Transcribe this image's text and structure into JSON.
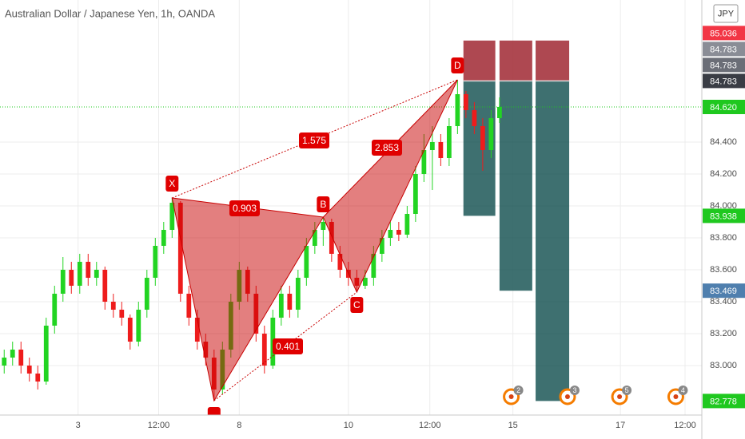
{
  "header": {
    "title": "Australian Dollar / Japanese Yen, 1h, OANDA",
    "currency_button": "JPY"
  },
  "chart_data": {
    "type": "candlestick",
    "candles": [
      [
        83.0,
        83.1,
        82.95,
        83.05
      ],
      [
        83.05,
        83.15,
        83.0,
        83.1
      ],
      [
        83.1,
        83.15,
        82.95,
        83.0
      ],
      [
        83.0,
        83.05,
        82.9,
        82.95
      ],
      [
        82.95,
        83.0,
        82.85,
        82.9
      ],
      [
        82.9,
        83.3,
        82.88,
        83.25
      ],
      [
        83.25,
        83.5,
        83.2,
        83.45
      ],
      [
        83.45,
        83.68,
        83.4,
        83.6
      ],
      [
        83.6,
        83.65,
        83.45,
        83.5
      ],
      [
        83.5,
        83.7,
        83.45,
        83.65
      ],
      [
        83.65,
        83.7,
        83.5,
        83.55
      ],
      [
        83.55,
        83.65,
        83.5,
        83.6
      ],
      [
        83.6,
        83.62,
        83.35,
        83.4
      ],
      [
        83.4,
        83.45,
        83.3,
        83.35
      ],
      [
        83.35,
        83.4,
        83.25,
        83.3
      ],
      [
        83.3,
        83.32,
        83.1,
        83.15
      ],
      [
        83.15,
        83.4,
        83.12,
        83.35
      ],
      [
        83.35,
        83.6,
        83.3,
        83.55
      ],
      [
        83.55,
        83.8,
        83.5,
        83.75
      ],
      [
        83.75,
        83.9,
        83.7,
        83.85
      ],
      [
        83.85,
        84.05,
        83.8,
        84.02
      ],
      [
        84.02,
        84.03,
        83.4,
        83.45
      ],
      [
        83.45,
        83.5,
        83.25,
        83.3
      ],
      [
        83.3,
        83.35,
        83.1,
        83.15
      ],
      [
        83.15,
        83.2,
        83.0,
        83.05
      ],
      [
        83.05,
        83.1,
        82.78,
        82.85
      ],
      [
        82.85,
        83.15,
        82.82,
        83.1
      ],
      [
        83.1,
        83.45,
        83.05,
        83.4
      ],
      [
        83.4,
        83.65,
        83.35,
        83.6
      ],
      [
        83.6,
        83.62,
        83.4,
        83.45
      ],
      [
        83.45,
        83.5,
        83.15,
        83.2
      ],
      [
        83.2,
        83.25,
        82.95,
        83.0
      ],
      [
        83.0,
        83.35,
        82.98,
        83.3
      ],
      [
        83.3,
        83.5,
        83.25,
        83.45
      ],
      [
        83.45,
        83.5,
        83.3,
        83.35
      ],
      [
        83.35,
        83.6,
        83.3,
        83.55
      ],
      [
        83.55,
        83.8,
        83.5,
        83.75
      ],
      [
        83.75,
        83.9,
        83.7,
        83.85
      ],
      [
        83.85,
        83.93,
        83.75,
        83.9
      ],
      [
        83.9,
        83.92,
        83.65,
        83.7
      ],
      [
        83.7,
        83.75,
        83.55,
        83.6
      ],
      [
        83.6,
        83.65,
        83.5,
        83.55
      ],
      [
        83.55,
        83.6,
        83.46,
        83.5
      ],
      [
        83.5,
        83.6,
        83.48,
        83.55
      ],
      [
        83.55,
        83.75,
        83.5,
        83.7
      ],
      [
        83.7,
        83.85,
        83.65,
        83.8
      ],
      [
        83.8,
        83.9,
        83.75,
        83.85
      ],
      [
        83.85,
        83.9,
        83.78,
        83.82
      ],
      [
        83.82,
        84.0,
        83.8,
        83.95
      ],
      [
        83.95,
        84.25,
        83.9,
        84.2
      ],
      [
        84.2,
        84.45,
        84.15,
        84.35
      ],
      [
        84.35,
        84.5,
        84.1,
        84.4
      ],
      [
        84.4,
        84.45,
        84.25,
        84.3
      ],
      [
        84.3,
        84.55,
        84.25,
        84.5
      ],
      [
        84.5,
        84.79,
        84.45,
        84.7
      ],
      [
        84.7,
        84.72,
        84.55,
        84.6
      ],
      [
        84.6,
        84.65,
        84.45,
        84.5
      ],
      [
        84.5,
        84.55,
        84.22,
        84.35
      ],
      [
        84.35,
        84.6,
        84.3,
        84.55
      ],
      [
        84.55,
        84.68,
        84.52,
        84.62
      ]
    ],
    "up_color": "#22d422",
    "down_color": "#ee1c1c",
    "xlim": [
      -0.5,
      83.1
    ],
    "xticks": [
      {
        "value": 8.8,
        "label": "3"
      },
      {
        "value": 18.4,
        "label": "12:00"
      },
      {
        "value": 28,
        "label": "8"
      },
      {
        "value": 41,
        "label": "10"
      },
      {
        "value": 50.7,
        "label": "12:00"
      },
      {
        "value": 60.6,
        "label": "15"
      },
      {
        "value": 73.4,
        "label": "17"
      },
      {
        "value": 81.1,
        "label": "12:00"
      }
    ],
    "ylim": [
      82.69,
      85.29
    ],
    "yticks": [
      {
        "value": 83.0,
        "label": "83.000"
      },
      {
        "value": 83.2,
        "label": "83.200"
      },
      {
        "value": 83.4,
        "label": "83.400"
      },
      {
        "value": 83.6,
        "label": "83.600"
      },
      {
        "value": 83.8,
        "label": "83.800"
      },
      {
        "value": 84.0,
        "label": "84.000"
      },
      {
        "value": 84.2,
        "label": "84.200"
      },
      {
        "value": 84.4,
        "label": "84.400"
      }
    ],
    "grid": true,
    "current_price": 84.62,
    "pattern": {
      "color": "#c80000",
      "points": [
        {
          "label": "X",
          "x": 20,
          "price": 84.05
        },
        {
          "label": null,
          "x": 25,
          "price": 82.78
        },
        {
          "label": "B",
          "x": 38,
          "price": 83.93
        },
        {
          "label": "C",
          "x": 42,
          "price": 83.46
        },
        {
          "label": "D",
          "x": 54,
          "price": 84.79
        }
      ],
      "ratios": [
        0.903,
        1.575,
        2.853,
        0.401
      ]
    },
    "trade": {
      "stop": 85.036,
      "entry": 84.783,
      "targets": [
        83.938,
        83.469,
        82.778
      ],
      "starts": [
        54.7,
        59.0,
        63.3
      ],
      "ends": [
        58.5,
        62.9,
        67.3
      ]
    },
    "axis_markers": [
      {
        "value": 85.036,
        "label": "85.036",
        "color": "#f23645"
      },
      {
        "value": 84.783,
        "label": "84.783",
        "color": "#8a8d96"
      },
      {
        "value": 84.783,
        "label": "84.783",
        "color": "#6b6e77"
      },
      {
        "value": 84.783,
        "label": "84.783",
        "color": "#3a3d45"
      },
      {
        "value": 84.62,
        "label": "84.620",
        "color": "#1fc81f"
      },
      {
        "value": 83.938,
        "label": "83.938",
        "color": "#1fc81f"
      },
      {
        "value": 83.469,
        "label": "83.469",
        "color": "#4f7fae"
      },
      {
        "value": 82.778,
        "label": "82.778",
        "color": "#1fc81f"
      }
    ],
    "events": [
      {
        "x": 60.4,
        "count": 2
      },
      {
        "x": 67.1,
        "count": 3
      },
      {
        "x": 73.3,
        "count": 5
      },
      {
        "x": 80.0,
        "count": 4
      }
    ]
  }
}
